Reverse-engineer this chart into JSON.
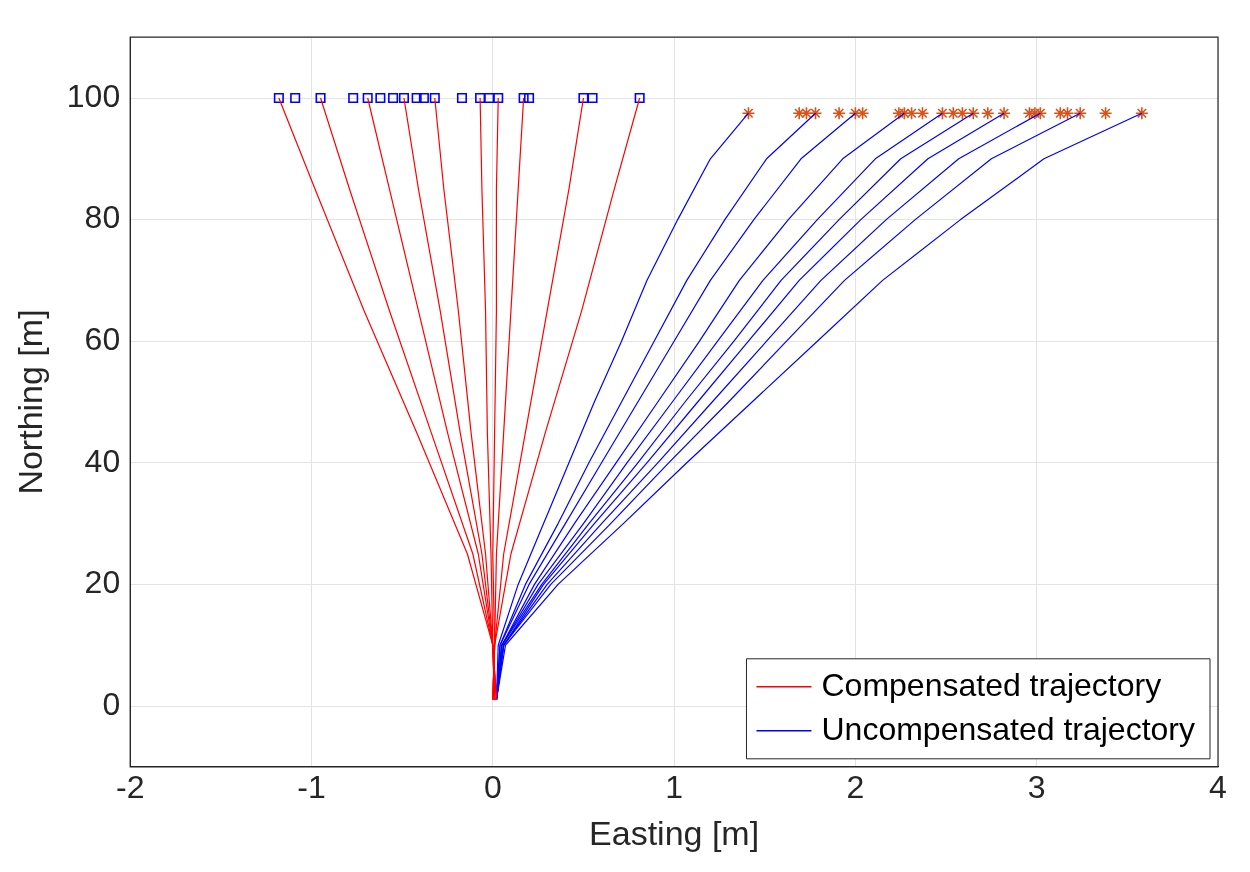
{
  "chart_data": {
    "type": "line",
    "xlabel": "Easting [m]",
    "ylabel": "Northing [m]",
    "xlim": [
      -2,
      4
    ],
    "xticks": [
      -2,
      -1,
      0,
      1,
      2,
      3,
      4
    ],
    "ylim": [
      -10,
      110
    ],
    "yticks": [
      0,
      20,
      40,
      60,
      80,
      100
    ],
    "grid": true,
    "legend": "bottom right",
    "series": [
      {
        "name": "Compensated trajectory",
        "color": "#ff0000",
        "marker": "none",
        "x": [
          0.02,
          0.0,
          -0.14,
          -0.42,
          -0.71,
          -0.98,
          -1.18
        ],
        "values": [
          1,
          10,
          25,
          45,
          65,
          85,
          100
        ]
      },
      {
        "color": "#ff0000",
        "marker": "none",
        "x": [
          0.02,
          0.0,
          -0.11,
          -0.34,
          -0.57,
          -0.79,
          -0.95
        ],
        "values": [
          1,
          10,
          25,
          45,
          65,
          85,
          100
        ]
      },
      {
        "color": "#ff0000",
        "marker": "none",
        "x": [
          0.02,
          0.0,
          -0.08,
          -0.25,
          -0.41,
          -0.57,
          -0.69
        ],
        "values": [
          1,
          10,
          25,
          45,
          65,
          85,
          100
        ]
      },
      {
        "color": "#ff0000",
        "marker": "none",
        "x": [
          0.01,
          0.0,
          -0.06,
          -0.18,
          -0.29,
          -0.41,
          -0.49
        ],
        "values": [
          1,
          10,
          25,
          45,
          65,
          85,
          100
        ]
      },
      {
        "color": "#ff0000",
        "marker": "none",
        "x": [
          0.01,
          0.0,
          -0.04,
          -0.12,
          -0.19,
          -0.27,
          -0.32
        ],
        "values": [
          1,
          10,
          25,
          45,
          65,
          85,
          100
        ]
      },
      {
        "color": "#ff0000",
        "marker": "none",
        "x": [
          0.01,
          0.0,
          -0.01,
          -0.03,
          -0.04,
          -0.06,
          -0.07
        ],
        "values": [
          1,
          10,
          25,
          45,
          65,
          85,
          100
        ]
      },
      {
        "color": "#ff0000",
        "marker": "none",
        "x": [
          0.0,
          0.01,
          0.0,
          0.01,
          0.02,
          0.02,
          0.03
        ],
        "values": [
          1,
          10,
          25,
          45,
          65,
          85,
          100
        ]
      },
      {
        "color": "#ff0000",
        "marker": "none",
        "x": [
          0.0,
          0.01,
          0.02,
          0.06,
          0.1,
          0.14,
          0.17
        ],
        "values": [
          1,
          10,
          25,
          45,
          65,
          85,
          100
        ]
      },
      {
        "color": "#ff0000",
        "marker": "none",
        "x": [
          0.0,
          0.01,
          0.06,
          0.18,
          0.3,
          0.42,
          0.5
        ],
        "values": [
          1,
          10,
          25,
          45,
          65,
          85,
          100
        ]
      },
      {
        "color": "#ff0000",
        "marker": "none",
        "x": [
          0.0,
          0.01,
          0.1,
          0.29,
          0.49,
          0.67,
          0.81
        ],
        "values": [
          1,
          10,
          25,
          45,
          65,
          85,
          100
        ]
      },
      {
        "name": "Uncompensated trajectory",
        "color": "#0000ff",
        "marker": "none",
        "x": [
          0.02,
          0.03,
          0.14,
          0.28,
          0.42,
          0.56,
          0.71,
          0.85,
          1.02,
          1.2,
          1.41
        ],
        "values": [
          1,
          10,
          20,
          30,
          40,
          50,
          60,
          70,
          80,
          90,
          97.5
        ]
      },
      {
        "color": "#0000ff",
        "marker": "none",
        "x": [
          0.02,
          0.04,
          0.18,
          0.36,
          0.53,
          0.71,
          0.89,
          1.07,
          1.28,
          1.51,
          1.78
        ],
        "values": [
          1,
          10,
          20,
          30,
          40,
          50,
          60,
          70,
          80,
          90,
          97.5
        ]
      },
      {
        "color": "#0000ff",
        "marker": "none",
        "x": [
          0.02,
          0.04,
          0.2,
          0.4,
          0.6,
          0.8,
          1.0,
          1.2,
          1.44,
          1.7,
          2.0
        ],
        "values": [
          1,
          10,
          20,
          30,
          40,
          50,
          60,
          70,
          80,
          90,
          97.5
        ]
      },
      {
        "color": "#0000ff",
        "marker": "none",
        "x": [
          0.02,
          0.05,
          0.23,
          0.45,
          0.68,
          0.91,
          1.14,
          1.36,
          1.63,
          1.93,
          2.27
        ],
        "values": [
          1,
          10,
          20,
          30,
          40,
          50,
          60,
          70,
          80,
          90,
          97.5
        ]
      },
      {
        "color": "#0000ff",
        "marker": "none",
        "x": [
          0.02,
          0.05,
          0.25,
          0.5,
          0.74,
          0.99,
          1.24,
          1.49,
          1.79,
          2.11,
          2.48
        ],
        "values": [
          1,
          10,
          20,
          30,
          40,
          50,
          60,
          70,
          80,
          90,
          97.5
        ]
      },
      {
        "color": "#0000ff",
        "marker": "none",
        "x": [
          0.02,
          0.05,
          0.27,
          0.53,
          0.8,
          1.06,
          1.33,
          1.59,
          1.91,
          2.25,
          2.65
        ],
        "values": [
          1,
          10,
          20,
          30,
          40,
          50,
          60,
          70,
          80,
          90,
          97.5
        ]
      },
      {
        "color": "#0000ff",
        "marker": "none",
        "x": [
          0.02,
          0.06,
          0.28,
          0.56,
          0.85,
          1.13,
          1.41,
          1.69,
          2.03,
          2.4,
          2.82
        ],
        "values": [
          1,
          10,
          20,
          30,
          40,
          50,
          60,
          70,
          80,
          90,
          97.5
        ]
      },
      {
        "color": "#0000ff",
        "marker": "none",
        "x": [
          0.02,
          0.06,
          0.3,
          0.6,
          0.91,
          1.21,
          1.51,
          1.81,
          2.17,
          2.57,
          3.02
        ],
        "values": [
          1,
          10,
          20,
          30,
          40,
          50,
          60,
          70,
          80,
          90,
          97.5
        ]
      },
      {
        "color": "#0000ff",
        "marker": "none",
        "x": [
          0.02,
          0.06,
          0.32,
          0.65,
          0.97,
          1.3,
          1.62,
          1.94,
          2.33,
          2.75,
          3.24
        ],
        "values": [
          1,
          10,
          20,
          30,
          40,
          50,
          60,
          70,
          80,
          90,
          97.5
        ]
      },
      {
        "color": "#0000ff",
        "marker": "none",
        "x": [
          0.02,
          0.07,
          0.36,
          0.72,
          1.07,
          1.43,
          1.79,
          2.15,
          2.58,
          3.04,
          3.58
        ],
        "values": [
          1,
          10,
          20,
          30,
          40,
          50,
          60,
          70,
          80,
          90,
          97.5
        ]
      },
      {
        "type": "scatter",
        "color": "#0000ff",
        "marker": "square",
        "x": [
          -1.18,
          -1.09,
          -0.95,
          -0.77,
          -0.69,
          -0.62,
          -0.55,
          -0.49,
          -0.42,
          -0.38,
          -0.32,
          -0.17,
          -0.07,
          -0.02,
          0.03,
          0.17,
          0.2,
          0.5,
          0.55,
          0.81
        ],
        "values": [
          100,
          100,
          100,
          100,
          100,
          100,
          100,
          100,
          100,
          100,
          100,
          100,
          100,
          100,
          100,
          100,
          100,
          100,
          100,
          100
        ]
      },
      {
        "type": "scatter",
        "color": "#d95319",
        "marker": "cross",
        "x": [
          1.41,
          1.69,
          1.73,
          1.78,
          1.91,
          2.0,
          2.04,
          2.24,
          2.27,
          2.31,
          2.37,
          2.48,
          2.54,
          2.59,
          2.65,
          2.73,
          2.82,
          2.96,
          2.99,
          3.02,
          3.13,
          3.17,
          3.24,
          3.38,
          3.58
        ],
        "values": [
          97.5,
          97.5,
          97.5,
          97.5,
          97.5,
          97.5,
          97.5,
          97.5,
          97.5,
          97.5,
          97.5,
          97.5,
          97.5,
          97.5,
          97.5,
          97.5,
          97.5,
          97.5,
          97.5,
          97.5,
          97.5,
          97.5,
          97.5,
          97.5,
          97.5
        ]
      }
    ]
  }
}
